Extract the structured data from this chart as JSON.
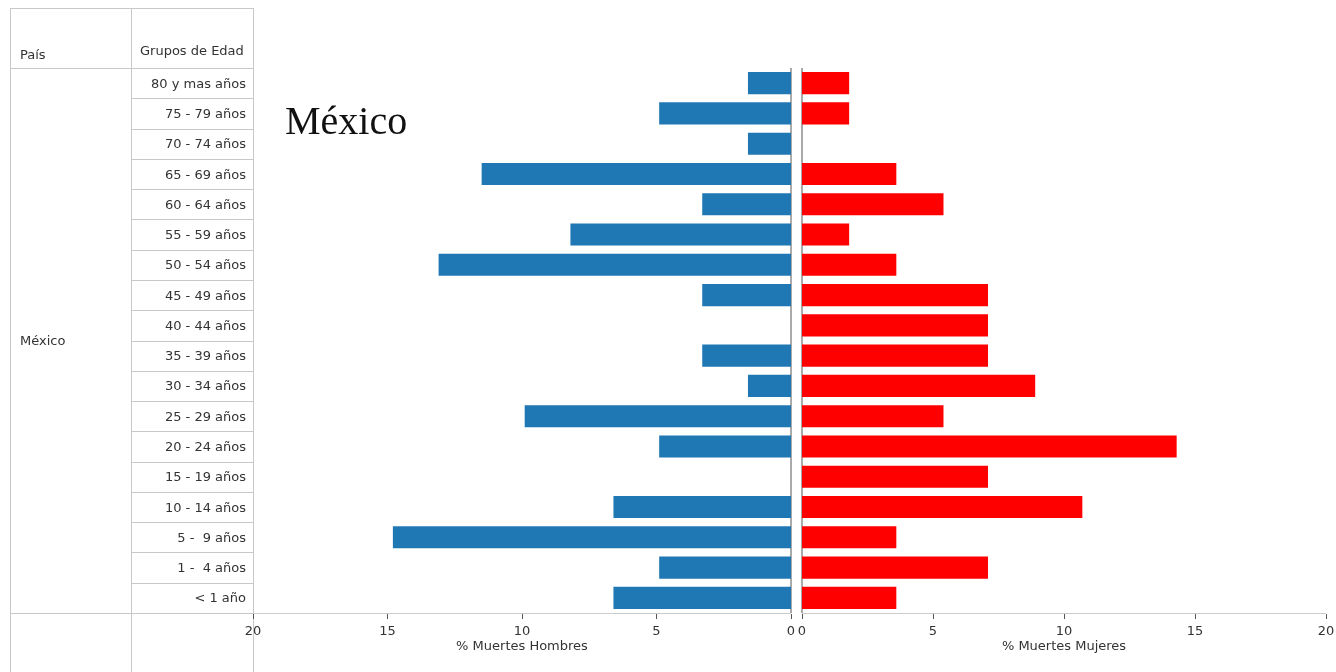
{
  "chart_data": [
    {
      "type": "bar",
      "orientation": "horizontal",
      "title": "México",
      "ylabel": "Grupos de Edad",
      "xlabel": "% Muertes Hombres",
      "annotations": [
        "País",
        "México"
      ],
      "categories": [
        "80 y mas años",
        "75 - 79 años",
        "70 - 74 años",
        "65 - 69 años",
        "60 - 64 años",
        "55 - 59 años",
        "50 - 54 años",
        "45 - 49 años",
        "40 - 44 años",
        "35 - 39 años",
        "30 - 34 años",
        "25 - 29 años",
        "20 - 24 años",
        "15 - 19 años",
        "10 - 14 años",
        "5 -  9 años",
        "1 -  4 años",
        "< 1 año"
      ],
      "values": [
        1.6,
        4.9,
        1.6,
        11.5,
        3.3,
        8.2,
        13.1,
        3.3,
        0,
        3.3,
        1.6,
        9.9,
        4.9,
        0,
        6.6,
        14.8,
        4.9,
        6.6
      ],
      "color": "#1f77b4",
      "xlim": [
        20,
        0
      ],
      "xticks": [
        20,
        15,
        10,
        5,
        0
      ],
      "grid": false
    },
    {
      "type": "bar",
      "orientation": "horizontal",
      "xlabel": "% Muertes Mujeres",
      "tick_labels": "x",
      "values": [
        1.8,
        1.8,
        0,
        3.6,
        5.4,
        1.8,
        3.6,
        7.1,
        7.1,
        7.1,
        8.9,
        5.4,
        14.3,
        7.1,
        10.7,
        3.6,
        7.1,
        3.6
      ],
      "color": "#ff0000",
      "xlim": [
        0,
        20
      ],
      "xticks": [
        0,
        5,
        10,
        15,
        20
      ],
      "grid": false
    }
  ]
}
